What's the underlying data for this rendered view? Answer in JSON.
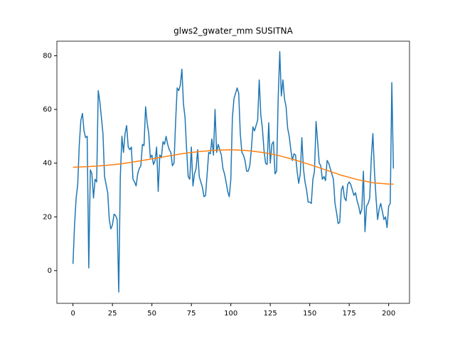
{
  "chart_data": {
    "type": "line",
    "title": "glws2_gwater_mm SUSITNA",
    "x": [
      0,
      1,
      2,
      3,
      4,
      5,
      6,
      7,
      8,
      9,
      10,
      11,
      12,
      13,
      14,
      15,
      16,
      17,
      18,
      19,
      20,
      21,
      22,
      23,
      24,
      25,
      26,
      27,
      28,
      29,
      30,
      31,
      32,
      33,
      34,
      35,
      36,
      37,
      38,
      39,
      40,
      41,
      42,
      43,
      44,
      45,
      46,
      47,
      48,
      49,
      50,
      51,
      52,
      53,
      54,
      55,
      56,
      57,
      58,
      59,
      60,
      61,
      62,
      63,
      64,
      65,
      66,
      67,
      68,
      69,
      70,
      71,
      72,
      73,
      74,
      75,
      76,
      77,
      78,
      79,
      80,
      81,
      82,
      83,
      84,
      85,
      86,
      87,
      88,
      89,
      90,
      91,
      92,
      93,
      94,
      95,
      96,
      97,
      98,
      99,
      100,
      101,
      102,
      103,
      104,
      105,
      106,
      107,
      108,
      109,
      110,
      111,
      112,
      113,
      114,
      115,
      116,
      117,
      118,
      119,
      120,
      121,
      122,
      123,
      124,
      125,
      126,
      127,
      128,
      129,
      130,
      131,
      132,
      133,
      134,
      135,
      136,
      137,
      138,
      139,
      140,
      141,
      142,
      143,
      144,
      145,
      146,
      147,
      148,
      149,
      150,
      151,
      152,
      153,
      154,
      155,
      156,
      157,
      158,
      159,
      160,
      161,
      162,
      163,
      164,
      165,
      166,
      167,
      168,
      169,
      170,
      171,
      172,
      173,
      174,
      175,
      176,
      177,
      178,
      179,
      180,
      181,
      182,
      183,
      184,
      185,
      186,
      187,
      188,
      189,
      190,
      191,
      192,
      193,
      194,
      195,
      196,
      197,
      198,
      199,
      200,
      201,
      202,
      203
    ],
    "series": [
      {
        "color": "#1f77b4",
        "values": [
          2.5,
          17,
          27,
          32,
          47,
          56,
          58.5,
          52,
          49.5,
          50,
          1,
          37.5,
          36,
          27,
          34,
          33,
          67,
          63,
          57,
          51,
          35,
          32,
          29,
          19,
          15.5,
          17,
          21,
          20.5,
          19,
          -8,
          35,
          50,
          44,
          51,
          54,
          46,
          45,
          46,
          34,
          33,
          31.5,
          36,
          38,
          39,
          47,
          46.5,
          61,
          55,
          51,
          42,
          43,
          39.5,
          41,
          46,
          29.5,
          43,
          42,
          48,
          47,
          50,
          47,
          45,
          44,
          39,
          40,
          55,
          68,
          67,
          69,
          75,
          62,
          57,
          45,
          35,
          34,
          46,
          31.5,
          36,
          38,
          45,
          35,
          33,
          31,
          27.5,
          28,
          36,
          44,
          43.5,
          49,
          43,
          60,
          44,
          47,
          45,
          43,
          38,
          36,
          33,
          29.5,
          27.5,
          34,
          57,
          64,
          66,
          68,
          66,
          51,
          44,
          43,
          41,
          37,
          37,
          39,
          45,
          53.5,
          52,
          54,
          56,
          71,
          58,
          53,
          45,
          40,
          39.5,
          55,
          40,
          47,
          48,
          36,
          37,
          64,
          81.5,
          65,
          71,
          64,
          61,
          53,
          50,
          45,
          41,
          43.5,
          43,
          37,
          32.5,
          36,
          49.5,
          38,
          33,
          30,
          25.5,
          25.5,
          25,
          34,
          37,
          55.5,
          48,
          40,
          39,
          34,
          35,
          33.5,
          41,
          40,
          38,
          36,
          34,
          25,
          21.5,
          17.5,
          18,
          30,
          31.5,
          27,
          26,
          32,
          33,
          32,
          30,
          28,
          29,
          26,
          24,
          21,
          23,
          37,
          14.5,
          24,
          25,
          27,
          42,
          51,
          37,
          27,
          19,
          23,
          25,
          22,
          19,
          20,
          16,
          24,
          25,
          70,
          38
        ]
      },
      {
        "color": "#ff7f0e",
        "x": [
          0,
          10,
          20,
          30,
          40,
          50,
          60,
          70,
          80,
          90,
          100,
          110,
          120,
          130,
          140,
          150,
          160,
          170,
          180,
          190,
          200,
          203
        ],
        "values": [
          38.5,
          38.7,
          39.1,
          39.7,
          40.6,
          41.6,
          42.6,
          43.6,
          44.3,
          44.8,
          45.0,
          44.7,
          44.0,
          42.9,
          41.3,
          39.5,
          37.5,
          35.5,
          33.9,
          32.7,
          32.2,
          32.2
        ]
      }
    ],
    "xlim": [
      -10.2,
      213.2
    ],
    "ylim": [
      -12.2,
      85.4
    ],
    "xticks": [
      0,
      25,
      50,
      75,
      100,
      125,
      150,
      175,
      200
    ],
    "yticks": [
      0,
      20,
      40,
      60,
      80
    ]
  }
}
